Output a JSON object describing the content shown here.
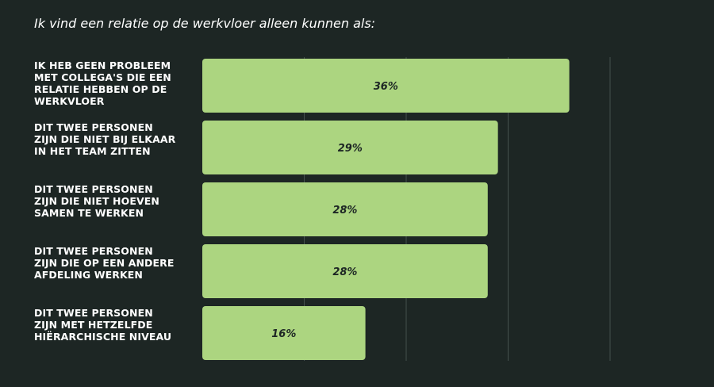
{
  "title": "Ik vind een relatie op de werkvloer alleen kunnen als:",
  "colors": {
    "background": "#1d2624",
    "bar": "#acd580",
    "gridline": "#44504d",
    "label": "#ffffff",
    "value_text": "#1d2624"
  },
  "chart_data": {
    "type": "bar",
    "orientation": "horizontal",
    "title": "Ik vind een relatie op de werkvloer alleen kunnen als:",
    "xlim": [
      0,
      40
    ],
    "grid": true,
    "legend": "none",
    "categories": [
      [
        "IK HEB GEEN PROBLEEM",
        "MET COLLEGA'S DIE EEN",
        "RELATIE HEBBEN OP DE",
        "WERKVLOER"
      ],
      [
        "DIT TWEE PERSONEN",
        "ZIJN DIE NIET BIJ ELKAAR",
        "IN HET TEAM ZITTEN"
      ],
      [
        "DIT TWEE PERSONEN",
        "ZIJN DIE NIET HOEVEN",
        "SAMEN TE WERKEN"
      ],
      [
        "DIT TWEE PERSONEN",
        "ZIJN DIE OP EEN ANDERE",
        "AFDELING WERKEN"
      ],
      [
        "DIT TWEE PERSONEN",
        "ZIJN MET HETZELFDE",
        "HIËRARCHISCHE NIVEAU"
      ]
    ],
    "values": [
      36,
      29,
      28,
      28,
      16
    ],
    "value_labels": [
      "36%",
      "29%",
      "28%",
      "28%",
      "16%"
    ]
  }
}
